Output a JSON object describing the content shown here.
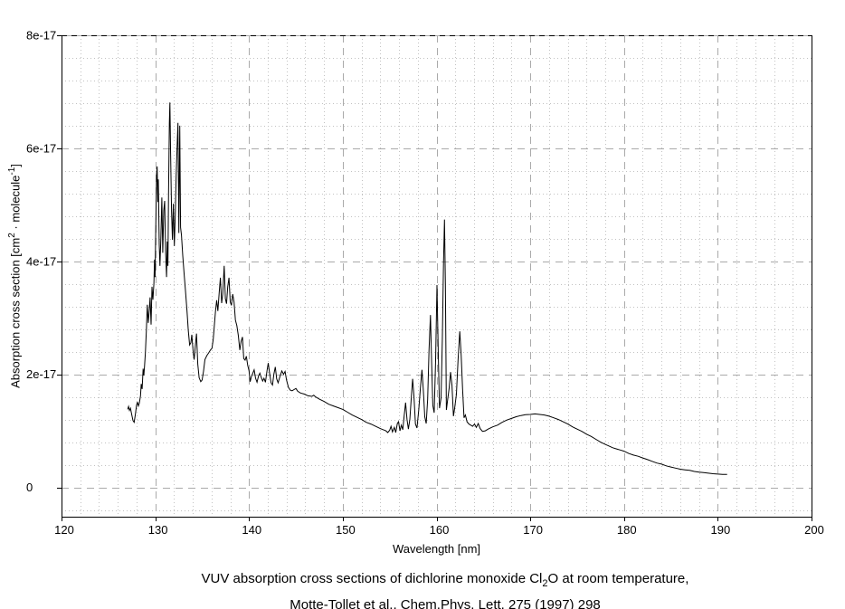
{
  "figure_title": "VUV absorption cross sections of dichlorine monoxide Cl2O at room temperature, Motte-Tollet et al., Chem.Phys. Lett. 275 (1997) 298",
  "colors": {
    "background": "#ffffff",
    "curve": "#000000",
    "grid_major": "#aaaaaa",
    "grid_minor": "#c2c2c2",
    "axis_frame": "#000000",
    "top_gridline": "#000000",
    "text": "#000000"
  },
  "x_axis": {
    "title": "Wavelength [nm]",
    "tick_values": [
      120,
      130,
      140,
      150,
      160,
      170,
      180,
      190,
      200
    ],
    "tick_labels": [
      "120",
      "130",
      "140",
      "150",
      "160",
      "170",
      "180",
      "190",
      "200"
    ]
  },
  "y_axis": {
    "title_p1": "Absorption cross section [cm",
    "title_sup1": "2",
    "title_p2": " · molecule",
    "title_sup2": "-1",
    "title_p3": "]",
    "tick_values": [
      0,
      2,
      4,
      6,
      8
    ],
    "tick_labels": [
      "0",
      "2e-17",
      "4e-17",
      "6e-17",
      "8e-17"
    ]
  },
  "caption": {
    "line1_p1": "VUV absorption cross sections of dichlorine monoxide Cl",
    "line1_sub": "2",
    "line1_p2": "O at room temperature,",
    "line2": "Motte-Tollet et al., Chem.Phys. Lett. 275 (1997) 298"
  },
  "chart_data": {
    "type": "line",
    "title": "VUV absorption cross sections of dichlorine monoxide Cl2O at room temperature",
    "source": "Motte-Tollet et al., Chem.Phys. Lett. 275 (1997) 298",
    "xlabel": "Wavelength [nm]",
    "ylabel": "Absorption cross section [cm^2 · molecule^-1]",
    "legend": "none",
    "grid": "on",
    "xlim": [
      120,
      200
    ],
    "ylim_1e17": [
      -0.52,
      8
    ],
    "x_major_step": 10,
    "x_minor_step": 2,
    "y_major_step": 2,
    "y_minor_step": 0.4,
    "y_unit": "1e-17 cm^2 / molecule",
    "points": [
      [
        127.05,
        1.38
      ],
      [
        127.15,
        1.43
      ],
      [
        127.25,
        1.36
      ],
      [
        127.35,
        1.4
      ],
      [
        127.5,
        1.28
      ],
      [
        127.62,
        1.18
      ],
      [
        127.75,
        1.15
      ],
      [
        127.88,
        1.3
      ],
      [
        128.0,
        1.45
      ],
      [
        128.1,
        1.51
      ],
      [
        128.2,
        1.44
      ],
      [
        128.3,
        1.49
      ],
      [
        128.42,
        1.62
      ],
      [
        128.5,
        1.83
      ],
      [
        128.6,
        1.74
      ],
      [
        128.7,
        2.1
      ],
      [
        128.78,
        1.98
      ],
      [
        128.85,
        2.13
      ],
      [
        128.95,
        2.38
      ],
      [
        129.05,
        2.78
      ],
      [
        129.15,
        3.23
      ],
      [
        129.25,
        2.91
      ],
      [
        129.35,
        3.12
      ],
      [
        129.45,
        3.36
      ],
      [
        129.55,
        2.88
      ],
      [
        129.65,
        3.55
      ],
      [
        129.75,
        3.32
      ],
      [
        129.85,
        3.6
      ],
      [
        129.92,
        4.03
      ],
      [
        129.98,
        3.72
      ],
      [
        130.07,
        4.85
      ],
      [
        130.14,
        5.55
      ],
      [
        130.2,
        5.68
      ],
      [
        130.27,
        5.05
      ],
      [
        130.33,
        5.45
      ],
      [
        130.42,
        4.3
      ],
      [
        130.5,
        3.92
      ],
      [
        130.6,
        4.4
      ],
      [
        130.7,
        5.13
      ],
      [
        130.8,
        4.15
      ],
      [
        130.9,
        4.9
      ],
      [
        131.0,
        5.07
      ],
      [
        131.1,
        4.2
      ],
      [
        131.2,
        3.72
      ],
      [
        131.28,
        4.35
      ],
      [
        131.35,
        3.92
      ],
      [
        131.42,
        5.2
      ],
      [
        131.5,
        6.45
      ],
      [
        131.56,
        6.81
      ],
      [
        131.64,
        5.9
      ],
      [
        131.73,
        4.9
      ],
      [
        131.83,
        4.38
      ],
      [
        131.93,
        5.02
      ],
      [
        132.03,
        4.27
      ],
      [
        132.13,
        4.8
      ],
      [
        132.23,
        5.5
      ],
      [
        132.32,
        6.0
      ],
      [
        132.42,
        6.45
      ],
      [
        132.52,
        4.5
      ],
      [
        132.61,
        6.4
      ],
      [
        132.7,
        4.6
      ],
      [
        132.8,
        4.46
      ],
      [
        132.93,
        4.1
      ],
      [
        133.08,
        3.78
      ],
      [
        133.22,
        3.48
      ],
      [
        133.38,
        3.12
      ],
      [
        133.52,
        2.78
      ],
      [
        133.66,
        2.52
      ],
      [
        133.8,
        2.56
      ],
      [
        133.9,
        2.7
      ],
      [
        134.03,
        2.42
      ],
      [
        134.15,
        2.26
      ],
      [
        134.28,
        2.52
      ],
      [
        134.4,
        2.72
      ],
      [
        134.53,
        2.18
      ],
      [
        134.68,
        1.94
      ],
      [
        134.85,
        1.87
      ],
      [
        135.0,
        1.9
      ],
      [
        135.15,
        2.06
      ],
      [
        135.3,
        2.26
      ],
      [
        135.5,
        2.33
      ],
      [
        135.7,
        2.38
      ],
      [
        135.88,
        2.43
      ],
      [
        136.05,
        2.46
      ],
      [
        136.18,
        2.62
      ],
      [
        136.3,
        2.86
      ],
      [
        136.42,
        3.12
      ],
      [
        136.55,
        3.31
      ],
      [
        136.68,
        3.12
      ],
      [
        136.82,
        3.45
      ],
      [
        136.95,
        3.71
      ],
      [
        137.08,
        3.26
      ],
      [
        137.2,
        3.42
      ],
      [
        137.35,
        3.92
      ],
      [
        137.48,
        3.34
      ],
      [
        137.6,
        3.25
      ],
      [
        137.73,
        3.55
      ],
      [
        137.86,
        3.71
      ],
      [
        138.0,
        3.28
      ],
      [
        138.12,
        3.22
      ],
      [
        138.26,
        3.42
      ],
      [
        138.4,
        3.28
      ],
      [
        138.55,
        2.96
      ],
      [
        138.7,
        2.86
      ],
      [
        138.86,
        2.69
      ],
      [
        139.02,
        2.43
      ],
      [
        139.16,
        2.58
      ],
      [
        139.3,
        2.66
      ],
      [
        139.44,
        2.28
      ],
      [
        139.58,
        2.25
      ],
      [
        139.72,
        2.32
      ],
      [
        139.86,
        2.16
      ],
      [
        140.0,
        2.06
      ],
      [
        140.12,
        1.87
      ],
      [
        140.26,
        1.96
      ],
      [
        140.4,
        2.02
      ],
      [
        140.55,
        2.08
      ],
      [
        140.7,
        1.93
      ],
      [
        140.85,
        1.86
      ],
      [
        141.0,
        1.96
      ],
      [
        141.15,
        2.02
      ],
      [
        141.3,
        1.95
      ],
      [
        141.45,
        1.88
      ],
      [
        141.6,
        1.93
      ],
      [
        141.75,
        1.86
      ],
      [
        141.92,
        2.06
      ],
      [
        142.05,
        2.2
      ],
      [
        142.2,
        2.02
      ],
      [
        142.35,
        1.85
      ],
      [
        142.5,
        1.81
      ],
      [
        142.65,
        2.0
      ],
      [
        142.8,
        2.13
      ],
      [
        142.95,
        1.92
      ],
      [
        143.1,
        1.85
      ],
      [
        143.3,
        1.96
      ],
      [
        143.5,
        2.06
      ],
      [
        143.68,
        2.0
      ],
      [
        143.85,
        2.05
      ],
      [
        144.0,
        1.9
      ],
      [
        144.2,
        1.77
      ],
      [
        144.4,
        1.72
      ],
      [
        144.6,
        1.71
      ],
      [
        144.8,
        1.73
      ],
      [
        145.0,
        1.75
      ],
      [
        145.2,
        1.7
      ],
      [
        145.5,
        1.67
      ],
      [
        145.9,
        1.65
      ],
      [
        146.3,
        1.62
      ],
      [
        146.7,
        1.61
      ],
      [
        146.9,
        1.63
      ],
      [
        147.1,
        1.6
      ],
      [
        147.5,
        1.56
      ],
      [
        148.0,
        1.52
      ],
      [
        148.5,
        1.47
      ],
      [
        149.0,
        1.44
      ],
      [
        149.5,
        1.41
      ],
      [
        150.0,
        1.38
      ],
      [
        150.5,
        1.33
      ],
      [
        151.0,
        1.28
      ],
      [
        151.5,
        1.24
      ],
      [
        152.0,
        1.2
      ],
      [
        152.5,
        1.15
      ],
      [
        153.0,
        1.12
      ],
      [
        153.5,
        1.08
      ],
      [
        154.0,
        1.04
      ],
      [
        154.3,
        1.02
      ],
      [
        154.6,
        1.0
      ],
      [
        154.8,
        0.97
      ],
      [
        155.0,
        1.01
      ],
      [
        155.15,
        1.08
      ],
      [
        155.3,
        0.98
      ],
      [
        155.5,
        1.06
      ],
      [
        155.65,
        0.97
      ],
      [
        155.82,
        1.13
      ],
      [
        155.95,
        1.16
      ],
      [
        156.1,
        1.0
      ],
      [
        156.25,
        1.1
      ],
      [
        156.4,
        1.02
      ],
      [
        156.55,
        1.26
      ],
      [
        156.7,
        1.5
      ],
      [
        156.85,
        1.2
      ],
      [
        157.0,
        1.03
      ],
      [
        157.15,
        1.2
      ],
      [
        157.3,
        1.56
      ],
      [
        157.45,
        1.92
      ],
      [
        157.6,
        1.6
      ],
      [
        157.75,
        1.12
      ],
      [
        157.92,
        1.05
      ],
      [
        158.1,
        1.36
      ],
      [
        158.28,
        1.76
      ],
      [
        158.45,
        2.08
      ],
      [
        158.6,
        1.7
      ],
      [
        158.75,
        1.25
      ],
      [
        158.9,
        1.13
      ],
      [
        159.05,
        1.56
      ],
      [
        159.2,
        2.42
      ],
      [
        159.35,
        3.05
      ],
      [
        159.48,
        2.2
      ],
      [
        159.6,
        1.45
      ],
      [
        159.75,
        1.32
      ],
      [
        159.9,
        2.25
      ],
      [
        160.05,
        3.58
      ],
      [
        160.18,
        2.4
      ],
      [
        160.32,
        1.4
      ],
      [
        160.48,
        1.58
      ],
      [
        160.62,
        2.6
      ],
      [
        160.74,
        3.95
      ],
      [
        160.85,
        4.74
      ],
      [
        160.95,
        3.6
      ],
      [
        161.05,
        1.37
      ],
      [
        161.2,
        1.56
      ],
      [
        161.35,
        1.76
      ],
      [
        161.5,
        2.04
      ],
      [
        161.65,
        1.8
      ],
      [
        161.8,
        1.26
      ],
      [
        161.95,
        1.42
      ],
      [
        162.12,
        1.65
      ],
      [
        162.3,
        2.25
      ],
      [
        162.48,
        2.76
      ],
      [
        162.63,
        2.32
      ],
      [
        162.78,
        1.74
      ],
      [
        162.93,
        1.23
      ],
      [
        163.08,
        1.28
      ],
      [
        163.25,
        1.16
      ],
      [
        163.45,
        1.12
      ],
      [
        163.65,
        1.1
      ],
      [
        163.85,
        1.08
      ],
      [
        164.05,
        1.12
      ],
      [
        164.25,
        1.06
      ],
      [
        164.45,
        1.13
      ],
      [
        164.65,
        1.04
      ],
      [
        164.9,
        0.99
      ],
      [
        165.2,
        1.0
      ],
      [
        165.5,
        1.03
      ],
      [
        166.0,
        1.07
      ],
      [
        166.5,
        1.1
      ],
      [
        167.0,
        1.15
      ],
      [
        167.5,
        1.19
      ],
      [
        168.0,
        1.22
      ],
      [
        168.5,
        1.25
      ],
      [
        169.0,
        1.27
      ],
      [
        169.5,
        1.285
      ],
      [
        170.0,
        1.29
      ],
      [
        170.5,
        1.3
      ],
      [
        171.0,
        1.29
      ],
      [
        171.5,
        1.28
      ],
      [
        172.0,
        1.26
      ],
      [
        172.5,
        1.23
      ],
      [
        173.0,
        1.2
      ],
      [
        173.5,
        1.16
      ],
      [
        174.0,
        1.12
      ],
      [
        174.5,
        1.07
      ],
      [
        175.0,
        1.03
      ],
      [
        175.5,
        0.99
      ],
      [
        176.0,
        0.94
      ],
      [
        176.5,
        0.9
      ],
      [
        177.0,
        0.85
      ],
      [
        177.5,
        0.8
      ],
      [
        178.0,
        0.76
      ],
      [
        178.4,
        0.73
      ],
      [
        178.8,
        0.7
      ],
      [
        179.2,
        0.68
      ],
      [
        179.6,
        0.66
      ],
      [
        180.0,
        0.64
      ],
      [
        180.5,
        0.6
      ],
      [
        181.0,
        0.57
      ],
      [
        181.5,
        0.55
      ],
      [
        182.0,
        0.52
      ],
      [
        182.5,
        0.49
      ],
      [
        183.0,
        0.46
      ],
      [
        183.5,
        0.43
      ],
      [
        184.0,
        0.41
      ],
      [
        184.5,
        0.38
      ],
      [
        185.0,
        0.36
      ],
      [
        185.5,
        0.34
      ],
      [
        186.0,
        0.32
      ],
      [
        186.5,
        0.31
      ],
      [
        187.0,
        0.3
      ],
      [
        187.5,
        0.28
      ],
      [
        188.0,
        0.27
      ],
      [
        188.5,
        0.26
      ],
      [
        189.0,
        0.25
      ],
      [
        189.5,
        0.24
      ],
      [
        190.0,
        0.235
      ],
      [
        190.5,
        0.23
      ],
      [
        191.0,
        0.23
      ]
    ]
  }
}
